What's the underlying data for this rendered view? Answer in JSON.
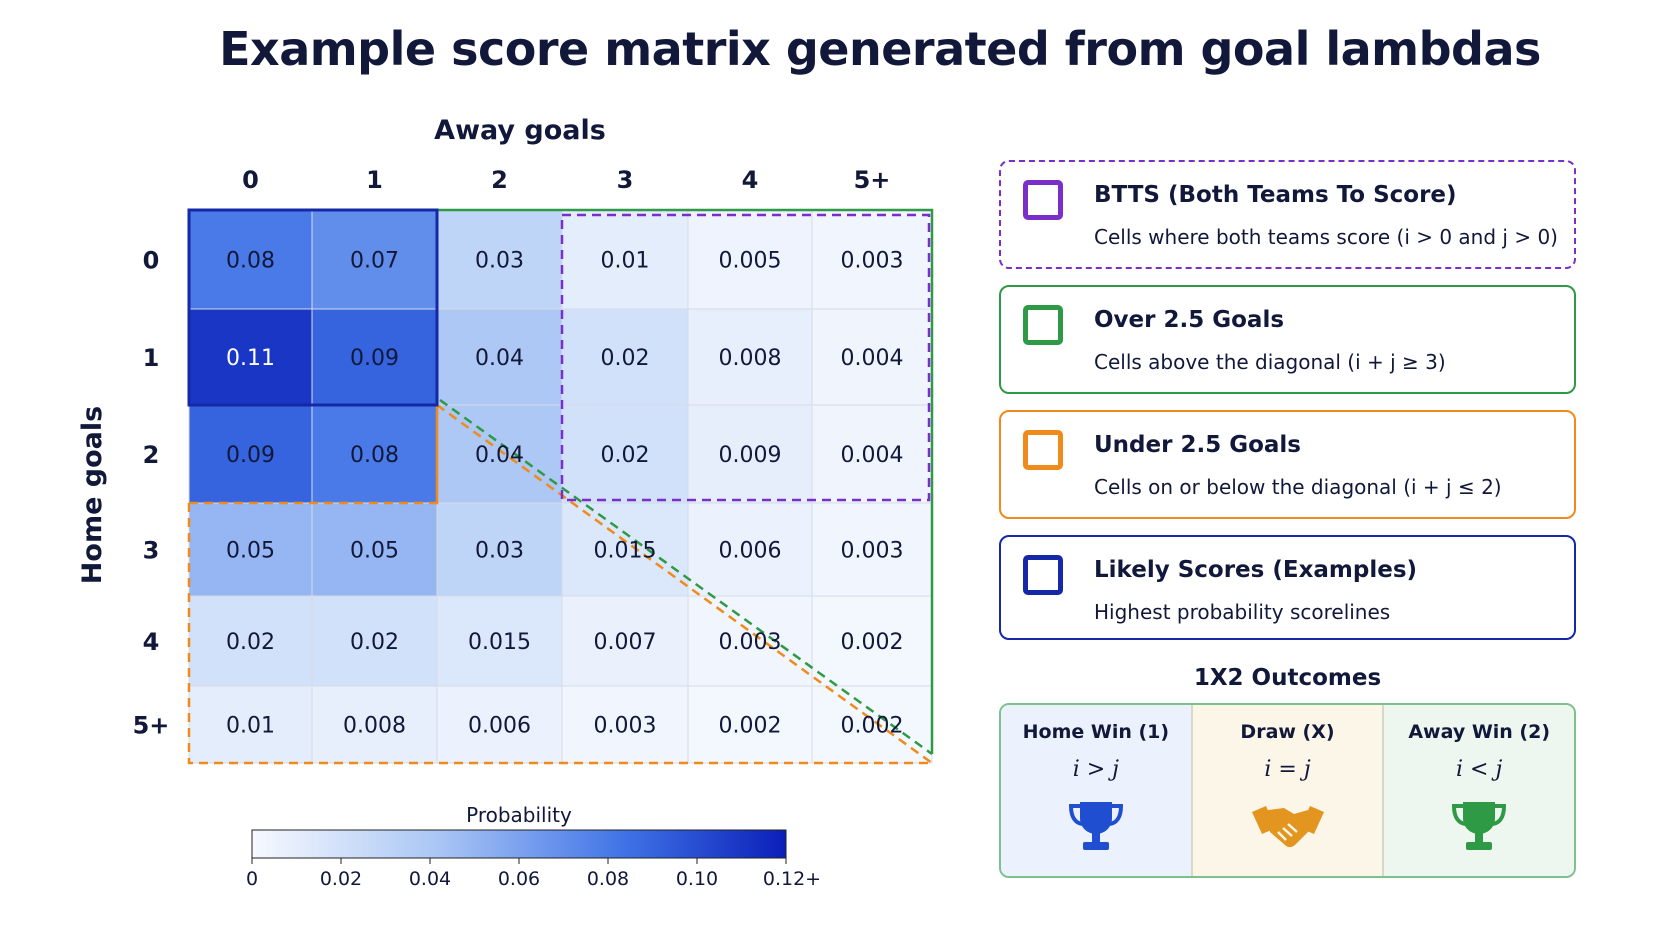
{
  "title": "Example score matrix generated from goal lambdas",
  "chart_data": {
    "type": "heatmap",
    "xlabel": "Away goals",
    "ylabel": "Home goals",
    "x_categories": [
      "0",
      "1",
      "2",
      "3",
      "4",
      "5+"
    ],
    "y_categories": [
      "0",
      "1",
      "2",
      "3",
      "4",
      "5+"
    ],
    "cells": [
      [
        "0.08",
        "0.07",
        "0.03",
        "0.01",
        "0.005",
        "0.003"
      ],
      [
        "0.11",
        "0.09",
        "0.04",
        "0.02",
        "0.008",
        "0.004"
      ],
      [
        "0.09",
        "0.08",
        "0.04",
        "0.02",
        "0.009",
        "0.004"
      ],
      [
        "0.05",
        "0.05",
        "0.03",
        "0.015",
        "0.006",
        "0.003"
      ],
      [
        "0.02",
        "0.02",
        "0.015",
        "0.007",
        "0.003",
        "0.002"
      ],
      [
        "0.01",
        "0.008",
        "0.006",
        "0.003",
        "0.002",
        "0.002"
      ]
    ],
    "colorbar": {
      "label": "Probability",
      "range": [
        0,
        0.12
      ],
      "ticks": [
        "0",
        "0.02",
        "0.04",
        "0.06",
        "0.08",
        "0.10",
        "0.12+"
      ]
    }
  },
  "legend": [
    {
      "title": "BTTS (Both Teams To Score)",
      "desc": "Cells where both teams score (i > 0 and j > 0)",
      "color": "#7b2fc9",
      "style": "dashed"
    },
    {
      "title": "Over 2.5 Goals",
      "desc": "Cells above the diagonal (i + j ≥ 3)",
      "color": "#2e9a45",
      "style": "solid"
    },
    {
      "title": "Under 2.5 Goals",
      "desc": "Cells on or below the diagonal (i + j ≤ 2)",
      "color": "#ef8a1c",
      "style": "solid"
    },
    {
      "title": "Likely Scores (Examples)",
      "desc": "Highest probability scorelines",
      "color": "#1428a8",
      "style": "solid"
    }
  ],
  "outcomes": {
    "title": "1X2 Outcomes",
    "items": [
      {
        "label": "Home Win (1)",
        "cond": "i > j",
        "icon": "trophy-icon",
        "color": "#1f4fd0",
        "bg": "#ecf2fd"
      },
      {
        "label": "Draw (X)",
        "cond": "i = j",
        "icon": "handshake-icon",
        "color": "#e2951f",
        "bg": "#fcf6e8"
      },
      {
        "label": "Away Win (2)",
        "cond": "i < j",
        "icon": "trophy-icon",
        "color": "#2f9a45",
        "bg": "#edf7ef"
      }
    ]
  }
}
